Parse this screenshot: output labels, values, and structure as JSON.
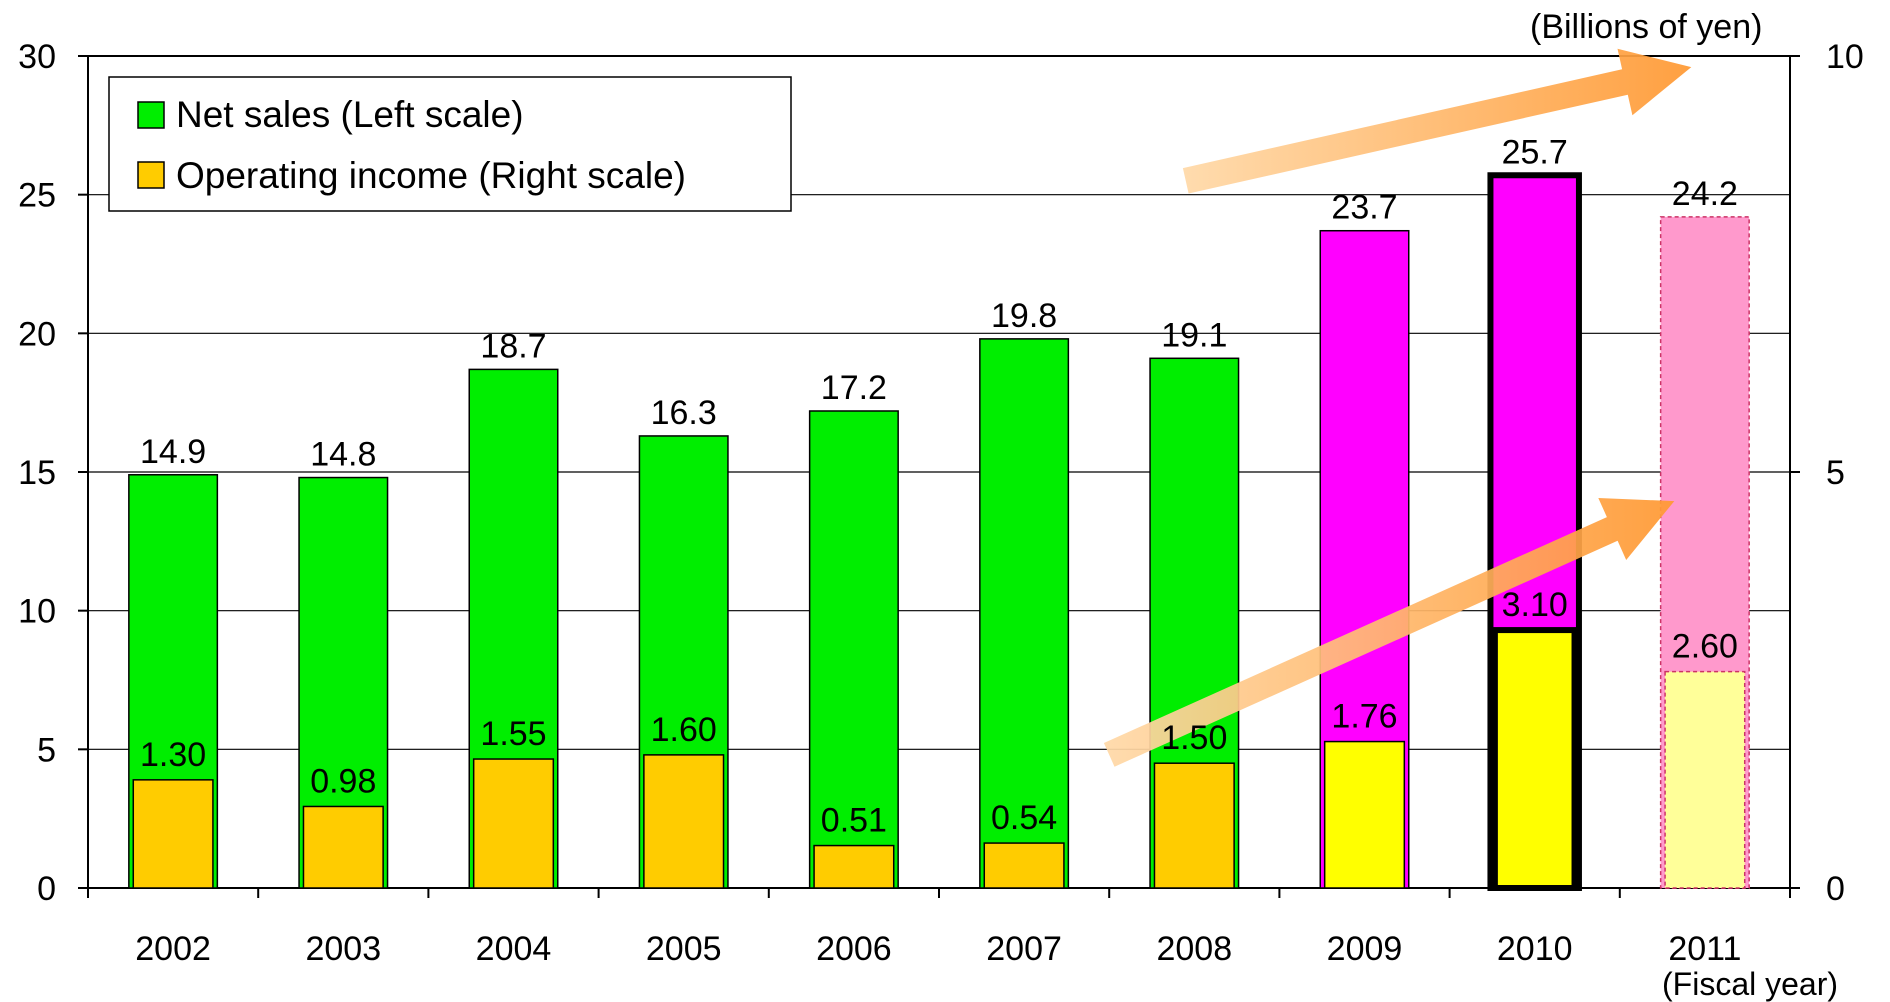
{
  "chart_data": {
    "type": "bar",
    "categories": [
      "2002",
      "2003",
      "2004",
      "2005",
      "2006",
      "2007",
      "2008",
      "2009",
      "2010",
      "2011"
    ],
    "series": [
      {
        "name": "Net sales (Left scale)",
        "axis": "left",
        "values": [
          14.9,
          14.8,
          18.7,
          16.3,
          17.2,
          19.8,
          19.1,
          23.7,
          25.7,
          24.2
        ],
        "labels": [
          "14.9",
          "14.8",
          "18.7",
          "16.3",
          "17.2",
          "19.8",
          "19.1",
          "23.7",
          "25.7",
          "24.2"
        ],
        "colors": [
          "#00ee00",
          "#00ee00",
          "#00ee00",
          "#00ee00",
          "#00ee00",
          "#00ee00",
          "#00ee00",
          "#ff00ff",
          "#ff00ff",
          "#ff99cc"
        ]
      },
      {
        "name": "Operating income (Right scale)",
        "axis": "right",
        "values": [
          1.3,
          0.98,
          1.55,
          1.6,
          0.51,
          0.54,
          1.5,
          1.76,
          3.1,
          2.6
        ],
        "labels": [
          "1.30",
          "0.98",
          "1.55",
          "1.60",
          "0.51",
          "0.54",
          "1.50",
          "1.76",
          "3.10",
          "2.60"
        ],
        "colors": [
          "#ffcc00",
          "#ffcc00",
          "#ffcc00",
          "#ffcc00",
          "#ffcc00",
          "#ffcc00",
          "#ffcc00",
          "#ffff00",
          "#ffff00",
          "#ffff99"
        ]
      }
    ],
    "y_left": {
      "min": 0,
      "max": 30,
      "ticks": [
        "0",
        "5",
        "10",
        "15",
        "20",
        "25",
        "30"
      ]
    },
    "y_right": {
      "min": 0,
      "max": 10,
      "ticks": [
        "0",
        "5",
        "10"
      ]
    },
    "unit_label": "(Billions of yen)",
    "x_unit_label": "(Fiscal year)",
    "legend": {
      "placement": "top-left",
      "border": true
    },
    "highlight": {
      "bold_outline": "2010",
      "dashed_outline": "2011"
    },
    "trend_arrows": [
      "net-sales-trend",
      "operating-income-trend"
    ],
    "arrow_color": "#ff9933",
    "grid": "horizontal"
  }
}
